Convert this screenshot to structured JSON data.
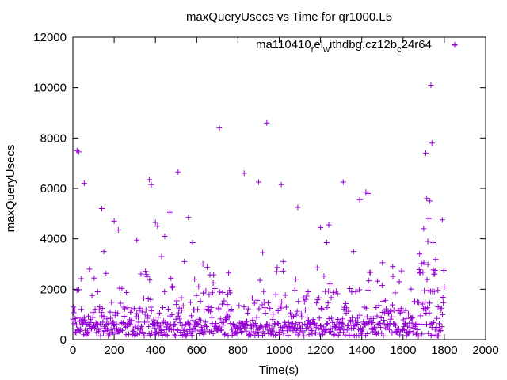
{
  "chart_data": {
    "type": "scatter",
    "title": "maxQueryUsecs vs Time for qr1000.L5",
    "xlabel": "Time(s)",
    "ylabel": "maxQueryUsecs",
    "xlim": [
      0,
      2000
    ],
    "ylim": [
      0,
      12000
    ],
    "x_ticks": [
      0,
      200,
      400,
      600,
      800,
      1000,
      1200,
      1400,
      1600,
      1800,
      2000
    ],
    "y_ticks": [
      0,
      2000,
      4000,
      6000,
      8000,
      10000,
      12000
    ],
    "grid": false,
    "legend_position": "top-right",
    "marker": "plus",
    "color": "#9400d3",
    "series": [
      {
        "name": "ma110410_rel_withdbg.cz12b_c24r64",
        "legend_parts": {
          "a": "ma110410",
          "a_sub": "r",
          "b": "el",
          "b_sub": "w",
          "c": "ithdbg.cz12b",
          "c_sub": "c",
          "d": "24r64"
        },
        "x": [
          12,
          20,
          28,
          40,
          55,
          80,
          120,
          140,
          150,
          200,
          220,
          310,
          360,
          370,
          380,
          400,
          410,
          430,
          445,
          470,
          480,
          510,
          540,
          560,
          580,
          590,
          630,
          680,
          710,
          750,
          830,
          900,
          920,
          940,
          1010,
          1020,
          1080,
          1090,
          1140,
          1200,
          1230,
          1240,
          1310,
          1360,
          1390,
          1420,
          1430,
          1500,
          1550,
          1680,
          1700,
          1710,
          1715,
          1720,
          1725,
          1730,
          1735,
          1740,
          1745,
          1750,
          1755,
          1770,
          1790,
          1850
        ],
        "y": [
          300,
          7500,
          7450,
          1200,
          6200,
          2800,
          1900,
          5200,
          3500,
          4700,
          4350,
          3950,
          2500,
          6350,
          6150,
          4650,
          4500,
          3300,
          4100,
          5050,
          2100,
          6650,
          3100,
          4850,
          3850,
          2400,
          3000,
          2250,
          8400,
          1800,
          6600,
          6250,
          3450,
          8600,
          6150,
          3100,
          2400,
          5250,
          1900,
          4450,
          3850,
          4550,
          6250,
          3500,
          5550,
          5850,
          5800,
          3050,
          2900,
          3400,
          4400,
          7400,
          5600,
          3900,
          4800,
          5500,
          10100,
          7800,
          3850,
          2600,
          2750,
          1300,
          4750,
          11700
        ]
      }
    ]
  }
}
